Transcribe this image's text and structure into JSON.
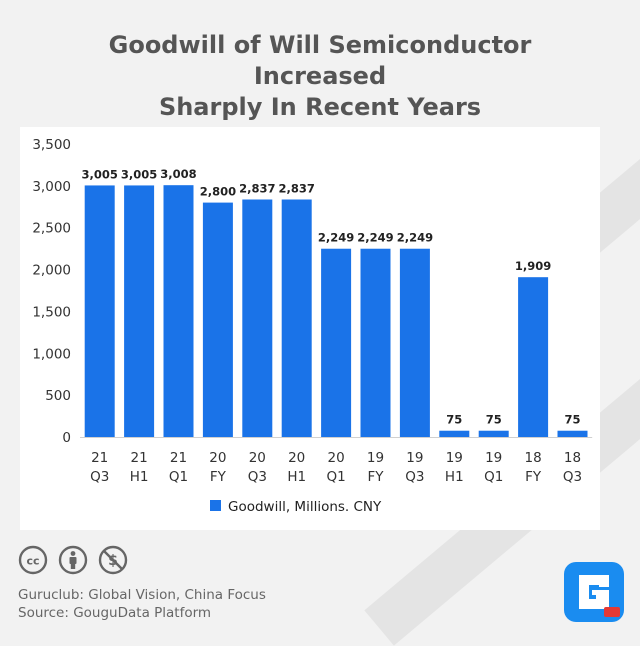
{
  "title": {
    "line1": "Goodwill of Will Semiconductor Increased",
    "line2": "Sharply In Recent Years"
  },
  "chart_data": {
    "type": "bar",
    "categories": [
      [
        "21",
        "Q3"
      ],
      [
        "21",
        "H1"
      ],
      [
        "21",
        "Q1"
      ],
      [
        "20",
        "FY"
      ],
      [
        "20",
        "Q3"
      ],
      [
        "20",
        "H1"
      ],
      [
        "20",
        "Q1"
      ],
      [
        "19",
        "FY"
      ],
      [
        "19",
        "Q3"
      ],
      [
        "19",
        "H1"
      ],
      [
        "19",
        "Q1"
      ],
      [
        "18",
        "FY"
      ],
      [
        "18",
        "Q3"
      ]
    ],
    "series": [
      {
        "name": "Goodwill, Millions. CNY",
        "values": [
          3005,
          3005,
          3008,
          2800,
          2837,
          2837,
          2249,
          2249,
          2249,
          75,
          75,
          1909,
          75
        ]
      }
    ],
    "data_labels": [
      "3,005",
      "3,005",
      "3,008",
      "2,800",
      "2,837",
      "2,837",
      "2,249",
      "2,249",
      "2,249",
      "75",
      "75",
      "1,909",
      "75"
    ],
    "yticks": [
      "3,500",
      "3,000",
      "2,500",
      "2,000",
      "1,500",
      "1,000",
      "500",
      "0"
    ],
    "ylim": [
      0,
      3500
    ],
    "grid": false,
    "legend_position": "bottom",
    "bar_color": "#1a73e8"
  },
  "footer": {
    "icons": [
      "creative-commons-icon",
      "attribution-icon",
      "non-commercial-icon"
    ],
    "line1": "Guruclub: Global Vision, China Focus",
    "line2": "Source: GouguData Platform"
  },
  "logo_color": "#1a8cf0"
}
